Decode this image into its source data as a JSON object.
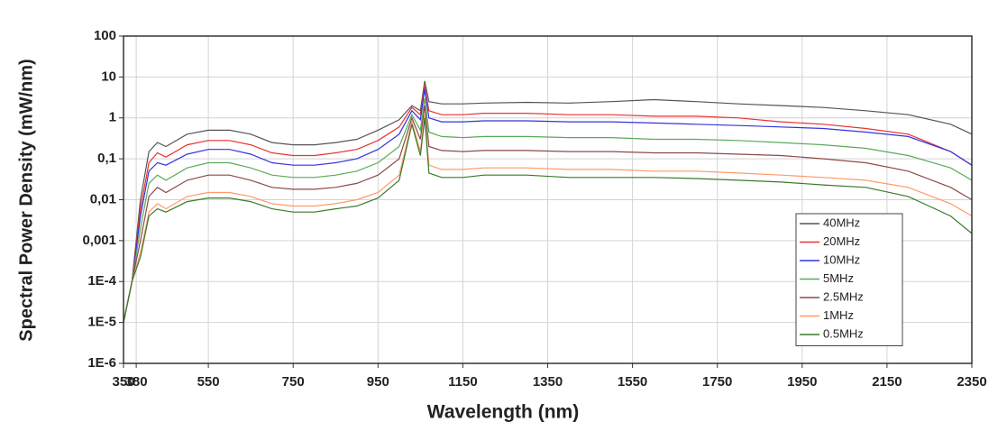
{
  "chart_data": {
    "type": "line",
    "log_y": true,
    "grid": true,
    "legend_position": "lower right",
    "xlabel": "Wavelength (nm)",
    "ylabel": "Spectral Power Density (mW/nm)",
    "xlim": [
      350,
      2350
    ],
    "xticks": [
      350,
      380,
      550,
      750,
      950,
      1150,
      1350,
      1550,
      1750,
      1950,
      2150,
      2350
    ],
    "ylim": [
      1e-06,
      100
    ],
    "yticks": [
      {
        "value": 1e-06,
        "label": "1E-6"
      },
      {
        "value": 1e-05,
        "label": "1E-5"
      },
      {
        "value": 0.0001,
        "label": "1E-4"
      },
      {
        "value": 0.001,
        "label": "0,001"
      },
      {
        "value": 0.01,
        "label": "0,01"
      },
      {
        "value": 0.1,
        "label": "0,1"
      },
      1,
      10,
      100
    ],
    "x": [
      350,
      370,
      390,
      410,
      430,
      450,
      500,
      550,
      600,
      650,
      700,
      750,
      800,
      850,
      900,
      950,
      1000,
      1030,
      1050,
      1060,
      1070,
      1100,
      1150,
      1200,
      1300,
      1400,
      1500,
      1600,
      1700,
      1800,
      1900,
      2000,
      2100,
      2200,
      2300,
      2350
    ],
    "series": [
      {
        "name": "40MHz",
        "color": "#555555",
        "values": [
          1e-05,
          0.0001,
          0.01,
          0.15,
          0.25,
          0.2,
          0.4,
          0.5,
          0.5,
          0.4,
          0.25,
          0.22,
          0.22,
          0.25,
          0.3,
          0.5,
          0.9,
          2,
          1.5,
          8,
          2.5,
          2.2,
          2.2,
          2.3,
          2.4,
          2.3,
          2.5,
          2.8,
          2.5,
          2.2,
          2,
          1.8,
          1.5,
          1.2,
          0.7,
          0.4
        ]
      },
      {
        "name": "20MHz",
        "color": "#e83333",
        "values": [
          1e-05,
          0.0001,
          0.006,
          0.08,
          0.14,
          0.11,
          0.22,
          0.28,
          0.28,
          0.22,
          0.14,
          0.12,
          0.12,
          0.14,
          0.17,
          0.28,
          0.6,
          1.8,
          1.2,
          6,
          1.5,
          1.2,
          1.2,
          1.3,
          1.3,
          1.2,
          1.2,
          1.1,
          1.1,
          1,
          0.8,
          0.7,
          0.55,
          0.4,
          0.15,
          0.07
        ]
      },
      {
        "name": "10MHz",
        "color": "#3333dd",
        "values": [
          1e-05,
          0.0001,
          0.004,
          0.05,
          0.08,
          0.07,
          0.13,
          0.17,
          0.17,
          0.13,
          0.08,
          0.07,
          0.07,
          0.08,
          0.1,
          0.17,
          0.4,
          1.5,
          0.9,
          5,
          1,
          0.8,
          0.8,
          0.85,
          0.85,
          0.8,
          0.8,
          0.75,
          0.7,
          0.65,
          0.6,
          0.55,
          0.45,
          0.35,
          0.15,
          0.07
        ]
      },
      {
        "name": "5MHz",
        "color": "#5aaa5a",
        "values": [
          1e-05,
          0.0001,
          0.002,
          0.025,
          0.04,
          0.03,
          0.06,
          0.08,
          0.08,
          0.06,
          0.04,
          0.035,
          0.035,
          0.04,
          0.05,
          0.08,
          0.2,
          1.2,
          0.5,
          3,
          0.45,
          0.35,
          0.33,
          0.35,
          0.35,
          0.33,
          0.33,
          0.3,
          0.3,
          0.28,
          0.25,
          0.22,
          0.18,
          0.12,
          0.06,
          0.03
        ]
      },
      {
        "name": "2.5MHz",
        "color": "#8b4a4a",
        "values": [
          1e-05,
          0.0001,
          0.001,
          0.012,
          0.02,
          0.015,
          0.03,
          0.04,
          0.04,
          0.03,
          0.02,
          0.018,
          0.018,
          0.02,
          0.025,
          0.04,
          0.1,
          1,
          0.3,
          2,
          0.2,
          0.16,
          0.15,
          0.16,
          0.16,
          0.15,
          0.15,
          0.14,
          0.14,
          0.13,
          0.12,
          0.1,
          0.08,
          0.05,
          0.02,
          0.01
        ]
      },
      {
        "name": "1MHz",
        "color": "#ff9966",
        "values": [
          1e-05,
          0.0001,
          0.0005,
          0.005,
          0.008,
          0.006,
          0.012,
          0.015,
          0.015,
          0.012,
          0.008,
          0.007,
          0.007,
          0.008,
          0.01,
          0.015,
          0.04,
          0.8,
          0.15,
          1.2,
          0.07,
          0.055,
          0.055,
          0.06,
          0.06,
          0.055,
          0.055,
          0.05,
          0.05,
          0.045,
          0.04,
          0.035,
          0.03,
          0.02,
          0.008,
          0.004
        ]
      },
      {
        "name": "0.5MHz",
        "color": "#3a7a2a",
        "values": [
          1e-05,
          0.0001,
          0.0004,
          0.004,
          0.006,
          0.005,
          0.009,
          0.011,
          0.011,
          0.009,
          0.006,
          0.005,
          0.005,
          0.006,
          0.007,
          0.011,
          0.03,
          0.7,
          0.12,
          1,
          0.045,
          0.035,
          0.035,
          0.04,
          0.04,
          0.035,
          0.035,
          0.035,
          0.033,
          0.03,
          0.027,
          0.023,
          0.02,
          0.012,
          0.004,
          0.0015
        ]
      }
    ]
  }
}
